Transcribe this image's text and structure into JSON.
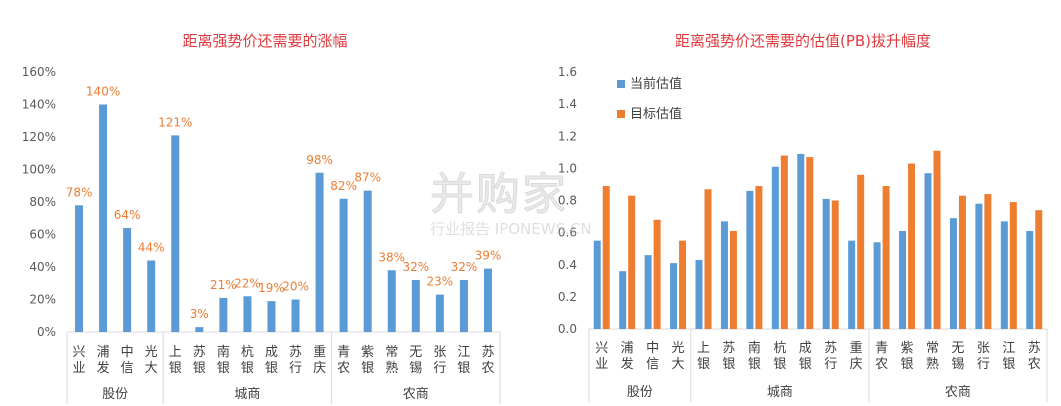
{
  "chart_data": [
    {
      "type": "bar",
      "title": "距离强势价还需要的涨幅",
      "categories": [
        "兴业",
        "浦发",
        "中信",
        "光大",
        "上银",
        "苏银",
        "南银",
        "杭银",
        "成银",
        "苏行",
        "重庆",
        "青农",
        "紫银",
        "常熟",
        "无锡",
        "张行",
        "江银",
        "苏农"
      ],
      "groups": [
        {
          "name": "股份",
          "count": 4
        },
        {
          "name": "城商",
          "count": 7
        },
        {
          "name": "农商",
          "count": 7
        }
      ],
      "series": [
        {
          "values": [
            78,
            140,
            64,
            44,
            121,
            3,
            21,
            22,
            19,
            20,
            98,
            82,
            87,
            38,
            32,
            23,
            32,
            39
          ],
          "color": "#5B9BD5"
        }
      ],
      "data_labels": [
        "78%",
        "140%",
        "64%",
        "44%",
        "121%",
        "3%",
        "21%",
        "22%",
        "19%",
        "20%",
        "98%",
        "82%",
        "87%",
        "38%",
        "32%",
        "23%",
        "32%",
        "39%"
      ],
      "label_color": "#ED7D31",
      "title_color": "#E03A3E",
      "yticks": [
        "0%",
        "20%",
        "40%",
        "60%",
        "80%",
        "100%",
        "120%",
        "140%",
        "160%"
      ],
      "ylim": [
        0,
        160
      ],
      "grid": false
    },
    {
      "type": "bar",
      "title": "距离强势价还需要的估值(PB)拔升幅度",
      "categories": [
        "兴业",
        "浦发",
        "中信",
        "光大",
        "上银",
        "苏银",
        "南银",
        "杭银",
        "成银",
        "苏行",
        "重庆",
        "青农",
        "紫银",
        "常熟",
        "无锡",
        "张行",
        "江银",
        "苏农"
      ],
      "groups": [
        {
          "name": "股份",
          "count": 4
        },
        {
          "name": "城商",
          "count": 7
        },
        {
          "name": "农商",
          "count": 7
        }
      ],
      "series": [
        {
          "name": "当前估值",
          "color": "#5B9BD5",
          "values": [
            0.55,
            0.36,
            0.46,
            0.41,
            0.43,
            0.67,
            0.86,
            1.01,
            1.09,
            0.81,
            0.55,
            0.54,
            0.61,
            0.97,
            0.69,
            0.78,
            0.67,
            0.61
          ]
        },
        {
          "name": "目标估值",
          "color": "#ED7D31",
          "values": [
            0.89,
            0.83,
            0.68,
            0.55,
            0.87,
            0.61,
            0.89,
            1.08,
            1.07,
            0.8,
            0.96,
            0.89,
            1.03,
            1.11,
            0.83,
            0.84,
            0.79,
            0.74
          ]
        }
      ],
      "legend_position": "top-left",
      "title_color": "#E03A3E",
      "yticks": [
        "0.0",
        "0.2",
        "0.4",
        "0.6",
        "0.8",
        "1.0",
        "1.2",
        "1.4",
        "1.6"
      ],
      "ylim": [
        0,
        1.6
      ],
      "grid": false
    }
  ],
  "watermark": {
    "main": "并购家",
    "sub": "行业报告 IPONEWS.CN"
  }
}
